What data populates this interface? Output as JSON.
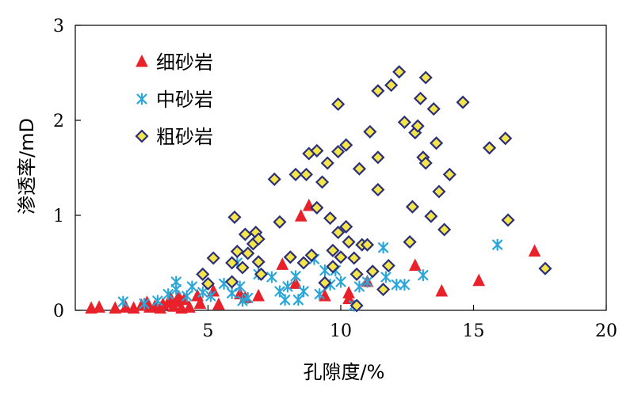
{
  "chart_data": {
    "type": "scatter",
    "xlabel": "孔隙度/%",
    "ylabel": "渗透率/mD",
    "xlim": [
      0,
      20
    ],
    "ylim": [
      0,
      3
    ],
    "xticks": [
      5,
      10,
      15,
      20
    ],
    "yticks": [
      0,
      1,
      2,
      3
    ],
    "legend_position": "top-left",
    "series": [
      {
        "name": "细砂岩",
        "marker": "triangle",
        "color": "#e8212a",
        "points": [
          [
            0.6,
            0.02
          ],
          [
            0.9,
            0.03
          ],
          [
            1.5,
            0.02
          ],
          [
            1.9,
            0.03
          ],
          [
            2.2,
            0.02
          ],
          [
            2.5,
            0.05
          ],
          [
            2.7,
            0.08
          ],
          [
            2.8,
            0.03
          ],
          [
            3.0,
            0.04
          ],
          [
            3.2,
            0.02
          ],
          [
            3.3,
            0.06
          ],
          [
            3.5,
            0.08
          ],
          [
            3.6,
            0.12
          ],
          [
            3.7,
            0.04
          ],
          [
            3.8,
            0.09
          ],
          [
            3.9,
            0.14
          ],
          [
            4.0,
            0.02
          ],
          [
            4.1,
            0.11
          ],
          [
            4.3,
            0.03
          ],
          [
            4.6,
            0.15
          ],
          [
            4.7,
            0.07
          ],
          [
            5.2,
            0.2
          ],
          [
            5.4,
            0.06
          ],
          [
            6.2,
            0.17
          ],
          [
            6.4,
            0.13
          ],
          [
            6.9,
            0.15
          ],
          [
            7.8,
            0.48
          ],
          [
            8.3,
            0.28
          ],
          [
            8.5,
            0.99
          ],
          [
            8.8,
            1.1
          ],
          [
            9.4,
            0.15
          ],
          [
            10.3,
            0.18
          ],
          [
            10.3,
            0.12
          ],
          [
            11.0,
            0.3
          ],
          [
            12.8,
            0.47
          ],
          [
            13.8,
            0.2
          ],
          [
            15.2,
            0.31
          ],
          [
            17.3,
            0.62
          ]
        ]
      },
      {
        "name": "中砂岩",
        "marker": "cross",
        "color": "#2aa7d8",
        "points": [
          [
            1.8,
            0.09
          ],
          [
            2.6,
            0.07
          ],
          [
            3.1,
            0.1
          ],
          [
            3.5,
            0.17
          ],
          [
            3.8,
            0.22
          ],
          [
            3.8,
            0.3
          ],
          [
            4.2,
            0.15
          ],
          [
            4.4,
            0.25
          ],
          [
            4.8,
            0.19
          ],
          [
            5.1,
            0.15
          ],
          [
            5.6,
            0.28
          ],
          [
            5.9,
            0.18
          ],
          [
            6.1,
            0.5
          ],
          [
            6.2,
            0.25
          ],
          [
            6.3,
            0.1
          ],
          [
            6.5,
            0.13
          ],
          [
            6.9,
            0.38
          ],
          [
            7.4,
            0.35
          ],
          [
            7.7,
            0.2
          ],
          [
            7.9,
            0.11
          ],
          [
            8.0,
            0.25
          ],
          [
            8.3,
            0.36
          ],
          [
            8.4,
            0.11
          ],
          [
            8.6,
            0.2
          ],
          [
            9.0,
            0.54
          ],
          [
            9.2,
            0.17
          ],
          [
            9.4,
            0.42
          ],
          [
            9.6,
            0.27
          ],
          [
            9.8,
            0.42
          ],
          [
            10.0,
            0.3
          ],
          [
            10.5,
            0.05
          ],
          [
            10.7,
            0.25
          ],
          [
            11.0,
            0.3
          ],
          [
            11.6,
            0.66
          ],
          [
            11.7,
            0.35
          ],
          [
            12.1,
            0.27
          ],
          [
            12.4,
            0.27
          ],
          [
            13.1,
            0.37
          ],
          [
            15.9,
            0.69
          ]
        ]
      },
      {
        "name": "粗砂岩",
        "marker": "diamond",
        "color": "#f4e64a",
        "points": [
          [
            4.8,
            0.38
          ],
          [
            5.0,
            0.28
          ],
          [
            5.2,
            0.55
          ],
          [
            5.9,
            0.3
          ],
          [
            5.9,
            0.5
          ],
          [
            6.1,
            0.62
          ],
          [
            6.0,
            0.98
          ],
          [
            6.3,
            0.45
          ],
          [
            6.5,
            0.6
          ],
          [
            6.4,
            0.8
          ],
          [
            6.7,
            0.7
          ],
          [
            6.8,
            0.82
          ],
          [
            6.9,
            0.75
          ],
          [
            6.9,
            0.51
          ],
          [
            7.0,
            0.38
          ],
          [
            7.5,
            1.38
          ],
          [
            7.7,
            0.93
          ],
          [
            8.1,
            0.56
          ],
          [
            8.3,
            1.43
          ],
          [
            8.6,
            0.5
          ],
          [
            8.7,
            1.43
          ],
          [
            8.9,
            0.58
          ],
          [
            8.8,
            1.65
          ],
          [
            9.1,
            1.08
          ],
          [
            9.1,
            1.68
          ],
          [
            9.3,
            1.35
          ],
          [
            9.4,
            0.29
          ],
          [
            9.5,
            1.55
          ],
          [
            9.6,
            0.97
          ],
          [
            9.7,
            0.63
          ],
          [
            9.7,
            0.46
          ],
          [
            9.9,
            1.67
          ],
          [
            9.9,
            2.17
          ],
          [
            9.9,
            0.82
          ],
          [
            10.0,
            0.56
          ],
          [
            10.2,
            1.74
          ],
          [
            10.2,
            0.88
          ],
          [
            10.3,
            0.72
          ],
          [
            10.5,
            0.55
          ],
          [
            10.6,
            0.05
          ],
          [
            10.6,
            0.38
          ],
          [
            10.7,
            1.49
          ],
          [
            10.8,
            0.69
          ],
          [
            11.0,
            0.69
          ],
          [
            11.1,
            1.88
          ],
          [
            11.2,
            0.41
          ],
          [
            11.4,
            1.27
          ],
          [
            11.4,
            1.61
          ],
          [
            11.4,
            2.31
          ],
          [
            11.6,
            0.22
          ],
          [
            11.8,
            0.47
          ],
          [
            11.9,
            2.37
          ],
          [
            12.2,
            2.51
          ],
          [
            12.4,
            1.98
          ],
          [
            12.6,
            0.72
          ],
          [
            12.7,
            1.09
          ],
          [
            12.8,
            1.87
          ],
          [
            12.9,
            1.94
          ],
          [
            13.0,
            2.23
          ],
          [
            13.1,
            1.61
          ],
          [
            13.2,
            2.45
          ],
          [
            13.2,
            1.55
          ],
          [
            13.4,
            0.99
          ],
          [
            13.5,
            2.12
          ],
          [
            13.6,
            1.76
          ],
          [
            13.7,
            1.25
          ],
          [
            13.9,
            0.85
          ],
          [
            14.1,
            1.43
          ],
          [
            14.6,
            2.19
          ],
          [
            15.6,
            1.71
          ],
          [
            16.2,
            1.81
          ],
          [
            16.3,
            0.95
          ],
          [
            17.7,
            0.44
          ]
        ]
      }
    ]
  }
}
